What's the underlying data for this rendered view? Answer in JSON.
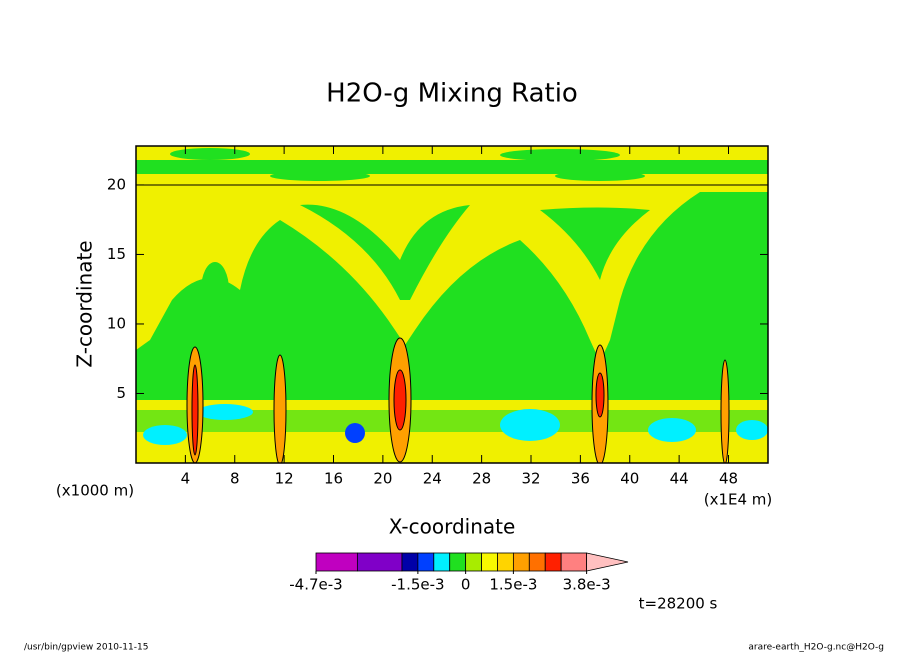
{
  "chart_data": {
    "type": "contour",
    "title": "H2O-g Mixing Ratio",
    "x_label": "X-coordinate",
    "y_label": "Z-coordinate",
    "x_unit_note": "(x1000 m)",
    "x_scale_note": "(x1E4 m)",
    "xlim": [
      0,
      51.2
    ],
    "ylim": [
      0,
      22.8
    ],
    "xticks": [
      4,
      8,
      12,
      16,
      20,
      24,
      28,
      32,
      36,
      40,
      44,
      48
    ],
    "yticks": [
      5,
      10,
      15,
      20
    ],
    "colorbar": {
      "levels": [
        -0.0047,
        -0.0034,
        -0.002,
        -0.0015,
        -0.001,
        -0.0005,
        0,
        0.0005,
        0.001,
        0.0015,
        0.002,
        0.0025,
        0.003,
        0.0038
      ],
      "colors": [
        "#c000c0",
        "#8000c8",
        "#0000a8",
        "#0040ff",
        "#00f0ff",
        "#20e020",
        "#a8ec00",
        "#f8f800",
        "#ffd400",
        "#ffa000",
        "#ff7000",
        "#ff2000",
        "#ff8080"
      ],
      "extend_color": "#ffc0c0",
      "clim": [
        -0.0047,
        0.0051
      ],
      "ticks": [
        {
          "value": -0.0047,
          "label": "-4.7e-3"
        },
        {
          "value": -0.0015,
          "label": "-1.5e-3"
        },
        0,
        {
          "value": 0.0015,
          "label": "1.5e-3"
        },
        {
          "value": 0.0038,
          "label": "3.8e-3"
        }
      ]
    },
    "time_label": "t=28200 s",
    "footer_left": "/usr/bin/gpview  2010-11-15",
    "footer_right": "arare-earth_H2O-g.nc@H2O-g"
  }
}
